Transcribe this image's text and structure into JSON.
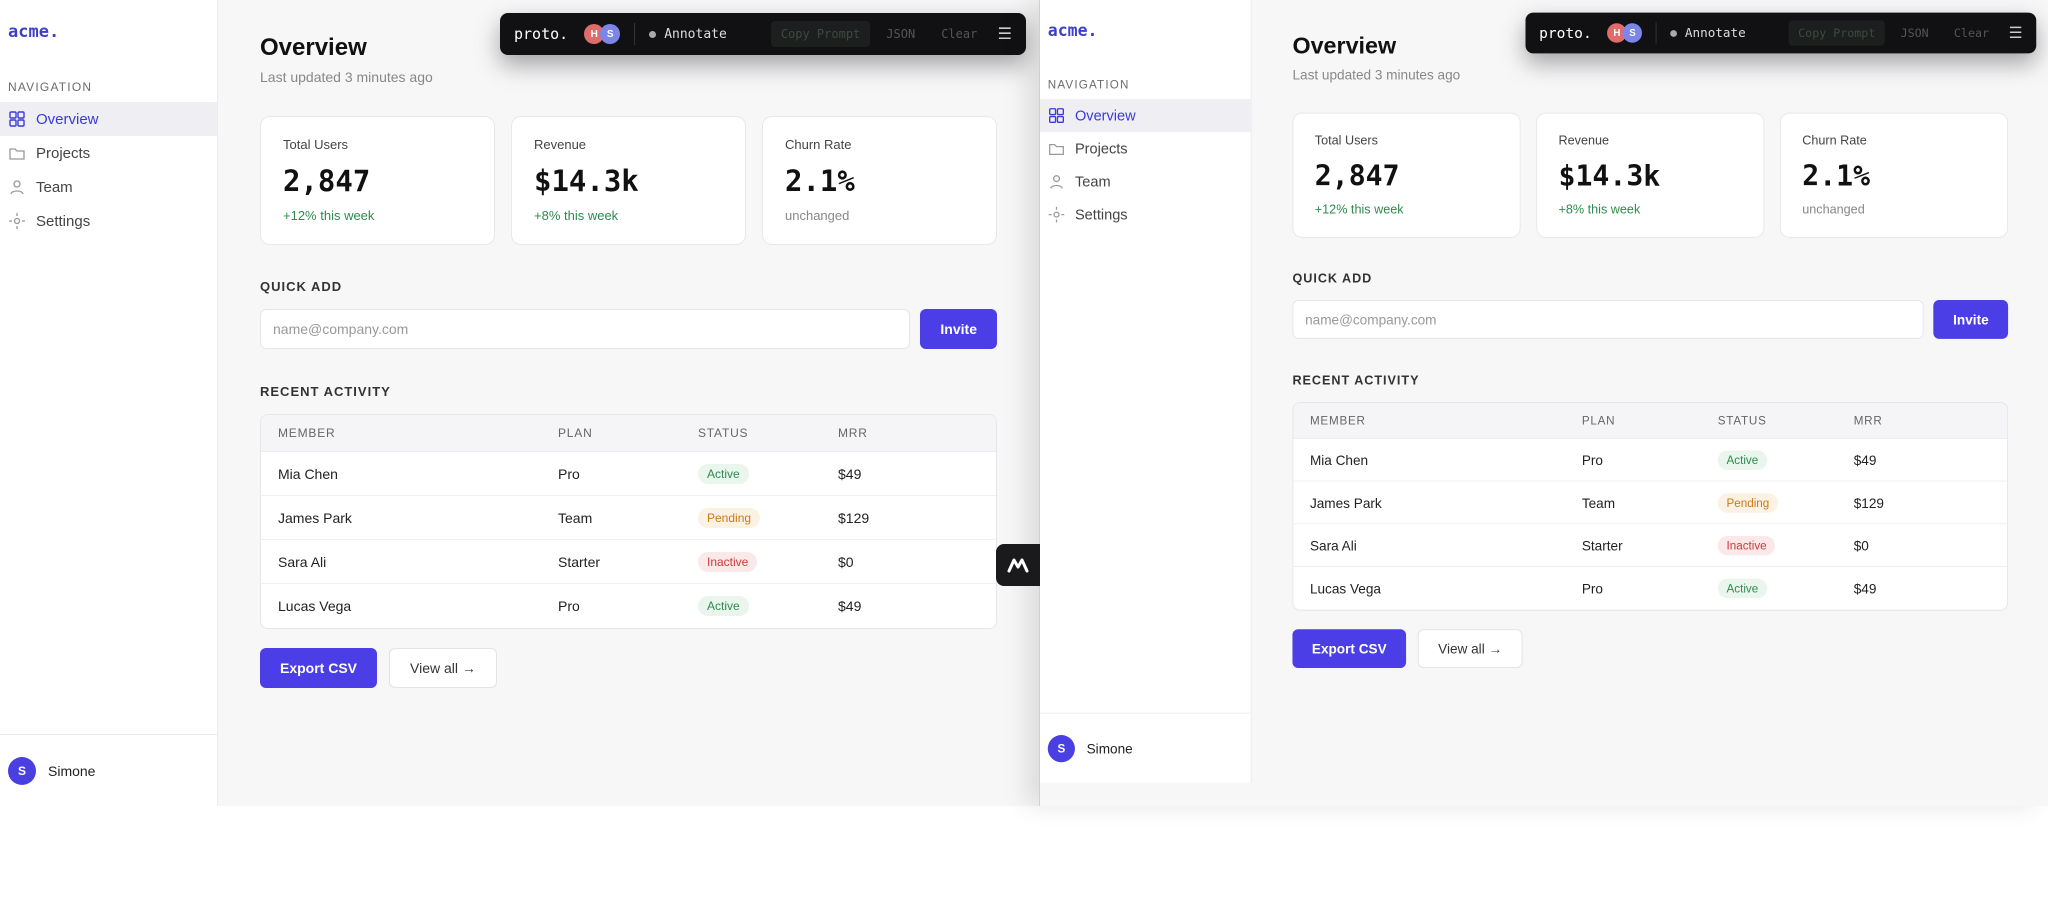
{
  "brand": "acme.",
  "nav": {
    "heading": "NAVIGATION",
    "items": [
      {
        "label": "Overview",
        "icon": "grid-icon",
        "active": true
      },
      {
        "label": "Projects",
        "icon": "folder-icon",
        "active": false
      },
      {
        "label": "Team",
        "icon": "user-icon",
        "active": false
      },
      {
        "label": "Settings",
        "icon": "gear-icon",
        "active": false
      }
    ]
  },
  "user": {
    "initial": "S",
    "name": "Simone"
  },
  "page": {
    "title": "Overview",
    "subtitle": "Last updated 3 minutes ago"
  },
  "stats": [
    {
      "label": "Total Users",
      "value": "2,847",
      "change": "+12% this week",
      "color": "#2f8a4e"
    },
    {
      "label": "Revenue",
      "value": "$14.3k",
      "change": "+8% this week",
      "color": "#2f8a4e"
    },
    {
      "label": "Churn Rate",
      "value": "2.1%",
      "change": "unchanged",
      "color": "#888888"
    }
  ],
  "quick_add": {
    "heading": "QUICK ADD",
    "placeholder": "name@company.com",
    "button": "Invite"
  },
  "activity": {
    "heading": "RECENT ACTIVITY",
    "columns": [
      "MEMBER",
      "PLAN",
      "STATUS",
      "MRR"
    ],
    "rows": [
      {
        "member": "Mia Chen",
        "plan": "Pro",
        "status": "Active",
        "mrr": "$49",
        "bg": "#eaf5ee",
        "fg": "#2f8a4e"
      },
      {
        "member": "James Park",
        "plan": "Team",
        "status": "Pending",
        "mrr": "$129",
        "bg": "#fcf2e3",
        "fg": "#c87a12"
      },
      {
        "member": "Sara Ali",
        "plan": "Starter",
        "status": "Inactive",
        "mrr": "$0",
        "bg": "#fbe9e9",
        "fg": "#c83a3a"
      },
      {
        "member": "Lucas Vega",
        "plan": "Pro",
        "status": "Active",
        "mrr": "$49",
        "bg": "#eaf5ee",
        "fg": "#2f8a4e"
      }
    ]
  },
  "buttons": {
    "export": "Export CSV",
    "view_all": "View all →"
  },
  "toolbar": {
    "logo": "proto.",
    "avatars": [
      {
        "initial": "H",
        "color": "#e06b6b"
      },
      {
        "initial": "S",
        "color": "#7b86e8"
      }
    ],
    "annotate": "Annotate",
    "copy_prompt": "Copy Prompt",
    "json": "JSON",
    "clear": "Clear",
    "menu_icon": "hamburger-icon"
  },
  "accent": "#4b3ee6"
}
